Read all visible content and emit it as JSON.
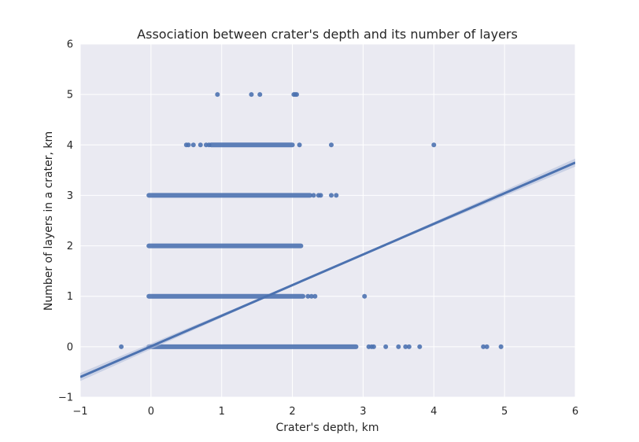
{
  "chart_data": {
    "type": "scatter",
    "title": "Association between crater's depth and its number of layers",
    "xlabel": "Crater's depth, km",
    "ylabel": "Number of layers in a crater, km",
    "xlim": [
      -1,
      6
    ],
    "ylim": [
      -1,
      6
    ],
    "xticks": [
      "−1",
      "0",
      "1",
      "2",
      "3",
      "4",
      "5",
      "6"
    ],
    "yticks": [
      "−1",
      "0",
      "1",
      "2",
      "3",
      "4",
      "5",
      "6"
    ],
    "grid": true,
    "colors": {
      "background": "#eaeaf2",
      "grid": "#ffffff",
      "points": "#4c72b0",
      "line": "#4c72b0",
      "band": "#b4c0dc"
    },
    "series": [
      {
        "points": [
          [
            -0.42,
            0
          ],
          [
            4.7,
            0
          ],
          [
            4.75,
            0
          ],
          [
            4.95,
            0
          ],
          [
            3.8,
            0
          ],
          [
            3.65,
            0
          ],
          [
            3.6,
            0
          ],
          [
            3.5,
            0
          ],
          [
            3.32,
            0
          ],
          [
            3.15,
            0
          ],
          [
            3.12,
            0
          ],
          [
            3.08,
            0
          ],
          [
            3.02,
            1
          ],
          [
            2.32,
            1
          ],
          [
            2.27,
            1
          ],
          [
            2.22,
            1
          ],
          [
            2.62,
            3
          ],
          [
            2.55,
            3
          ],
          [
            2.4,
            3
          ],
          [
            2.37,
            3
          ],
          [
            2.3,
            3
          ],
          [
            0.5,
            4
          ],
          [
            0.53,
            4
          ],
          [
            0.6,
            4
          ],
          [
            0.7,
            4
          ],
          [
            0.78,
            4
          ],
          [
            0.82,
            4
          ],
          [
            2.1,
            4
          ],
          [
            2.55,
            4
          ],
          [
            4.0,
            4
          ],
          [
            0.94,
            5
          ],
          [
            1.42,
            5
          ],
          [
            1.54,
            5
          ],
          [
            2.02,
            5
          ],
          [
            2.04,
            5
          ],
          [
            2.06,
            5
          ]
        ],
        "dense_ranges": [
          {
            "y": 0,
            "x_min": -0.03,
            "x_max": 2.9
          },
          {
            "y": 1,
            "x_min": -0.03,
            "x_max": 2.15
          },
          {
            "y": 2,
            "x_min": -0.03,
            "x_max": 2.12
          },
          {
            "y": 3,
            "x_min": -0.03,
            "x_max": 2.25
          },
          {
            "y": 4,
            "x_min": 0.85,
            "x_max": 2.0
          }
        ]
      }
    ],
    "regression": {
      "line_start": [
        -1,
        -0.6
      ],
      "line_end": [
        6,
        3.65
      ],
      "ci_at_max": 0.08
    }
  }
}
